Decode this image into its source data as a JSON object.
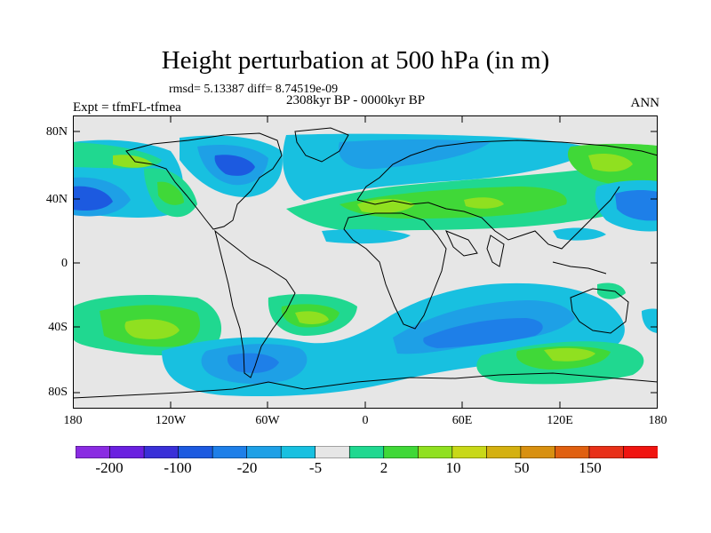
{
  "plot": {
    "title": "Height perturbation at 500 hPa (in m)",
    "stats": "rmsd= 5.13387 diff= 8.74519e-09",
    "period": "2308kyr BP - 0000kyr BP",
    "experiment": "Expt = tfmFL-tfmea",
    "season": "ANN"
  },
  "axes": {
    "lat_ticks": [
      "80N",
      "40N",
      "0",
      "40S",
      "80S"
    ],
    "lon_ticks": [
      "180",
      "120W",
      "60W",
      "0",
      "60E",
      "120E",
      "180"
    ]
  },
  "colorbar": {
    "labels": [
      "-200",
      "-100",
      "-20",
      "-5",
      "2",
      "10",
      "50",
      "150"
    ],
    "colors": [
      "#8a2be2",
      "#6a20e0",
      "#3a30d8",
      "#1c5ae0",
      "#1e7fe8",
      "#1ea0e6",
      "#18c0e0",
      "#e6e6e6",
      "#20d890",
      "#40d838",
      "#90e020",
      "#c8d818",
      "#d4b010",
      "#d89010",
      "#e06010",
      "#e83018",
      "#f01410"
    ]
  },
  "colors": {
    "ocean_background": "#e6e6e6",
    "coastline": "#000000"
  }
}
